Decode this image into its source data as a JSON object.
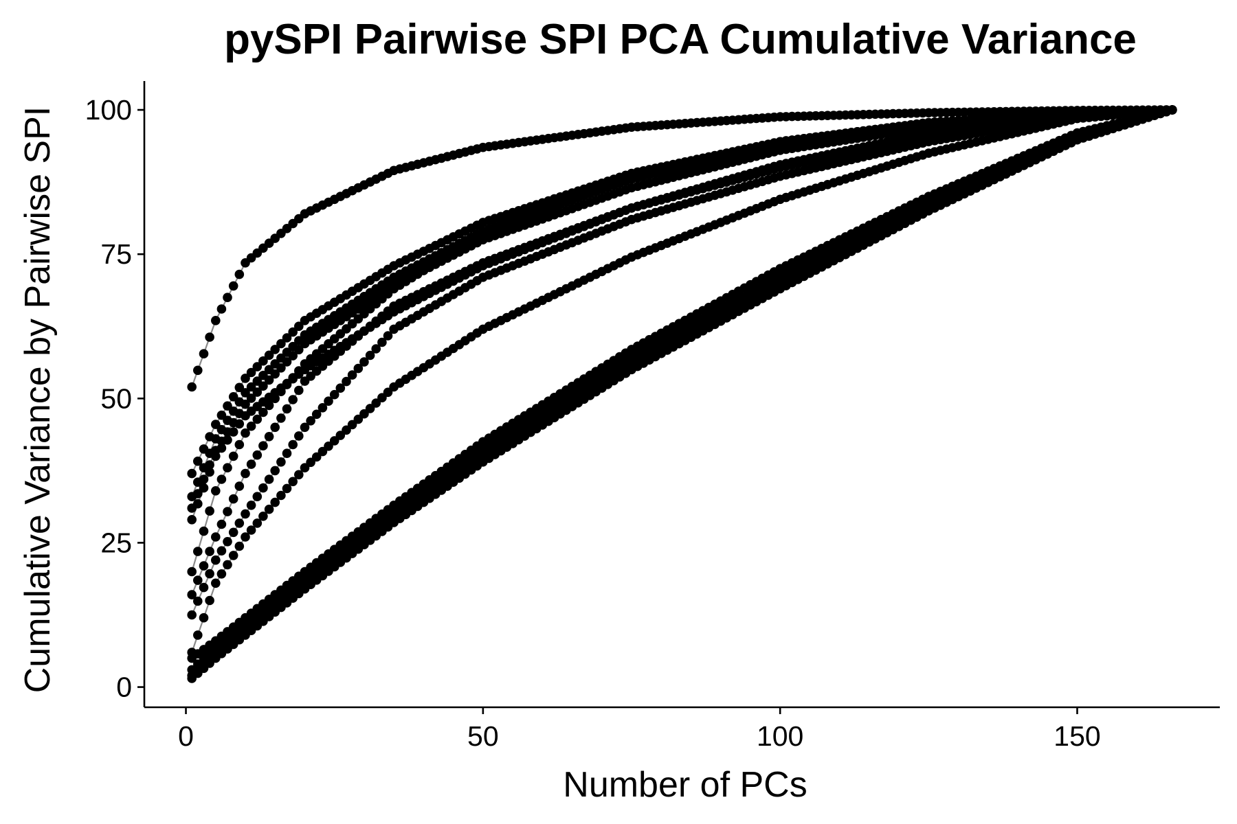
{
  "chart_data": {
    "type": "line",
    "title": "pySPI Pairwise SPI PCA Cumulative Variance",
    "xlabel": "Number of PCs",
    "ylabel": "Cumulative Variance by Pairwise SPI",
    "xlim": [
      -7,
      174
    ],
    "ylim": [
      -3.5,
      105
    ],
    "x_ticks": [
      0,
      50,
      100,
      150
    ],
    "y_ticks": [
      0,
      25,
      50,
      75,
      100
    ],
    "grid": false,
    "legend": "none",
    "colors": {
      "points": "#000000",
      "lines": "#8a8a8a"
    },
    "n_components": 166,
    "series": [
      {
        "x": [
          1,
          5,
          10,
          20,
          35,
          50,
          75,
          100,
          125,
          150,
          166
        ],
        "y": [
          52.0,
          63.5,
          73.5,
          82.0,
          89.5,
          93.5,
          97.0,
          98.8,
          99.5,
          99.9,
          100
        ]
      },
      {
        "x": [
          1,
          5,
          10,
          20,
          35,
          50,
          75,
          100,
          125,
          150,
          166
        ],
        "y": [
          37.0,
          45.5,
          53.5,
          63.5,
          73.0,
          80.5,
          89.0,
          94.5,
          97.8,
          99.6,
          100
        ]
      },
      {
        "x": [
          1,
          5,
          10,
          20,
          35,
          50,
          75,
          100,
          125,
          150,
          166
        ],
        "y": [
          33.0,
          43.0,
          51.0,
          61.0,
          71.0,
          79.0,
          88.0,
          94.0,
          97.5,
          99.5,
          100
        ]
      },
      {
        "x": [
          1,
          5,
          10,
          20,
          35,
          50,
          75,
          100,
          125,
          150,
          166
        ],
        "y": [
          31.0,
          41.0,
          49.0,
          59.5,
          69.5,
          77.5,
          86.5,
          93.0,
          97.0,
          99.4,
          100
        ]
      },
      {
        "x": [
          1,
          5,
          10,
          20,
          35,
          50,
          75,
          100,
          125,
          150,
          166
        ],
        "y": [
          29.0,
          40.0,
          47.0,
          55.0,
          65.0,
          73.0,
          83.0,
          90.5,
          96.0,
          99.3,
          100
        ]
      },
      {
        "x": [
          1,
          5,
          10,
          20,
          35,
          50,
          75,
          100,
          125,
          150,
          166
        ],
        "y": [
          20.0,
          34.0,
          44.0,
          56.0,
          69.0,
          78.5,
          88.5,
          94.5,
          97.8,
          99.6,
          100
        ]
      },
      {
        "x": [
          1,
          5,
          10,
          20,
          35,
          50,
          75,
          100,
          125,
          150,
          166
        ],
        "y": [
          16.0,
          26.0,
          37.0,
          53.0,
          66.0,
          73.5,
          83.0,
          90.0,
          95.5,
          99.2,
          100
        ]
      },
      {
        "x": [
          1,
          5,
          10,
          20,
          35,
          50,
          75,
          100,
          125,
          150,
          166
        ],
        "y": [
          12.5,
          22.0,
          30.0,
          45.0,
          62.0,
          71.0,
          81.0,
          88.5,
          94.5,
          98.9,
          100
        ]
      },
      {
        "x": [
          1,
          5,
          10,
          20,
          35,
          50,
          75,
          100,
          125,
          150,
          166
        ],
        "y": [
          6.0,
          18.0,
          26.0,
          38.0,
          52.0,
          62.0,
          74.5,
          84.5,
          92.5,
          98.5,
          100
        ]
      },
      {
        "x": [
          1,
          5,
          10,
          20,
          35,
          50,
          75,
          100,
          125,
          150,
          166
        ],
        "y": [
          5.0,
          8.0,
          12.0,
          20.0,
          31.5,
          42.5,
          58.5,
          72.5,
          85.0,
          96.0,
          100
        ]
      },
      {
        "x": [
          1,
          5,
          10,
          20,
          35,
          50,
          75,
          100,
          125,
          150,
          166
        ],
        "y": [
          3.0,
          7.0,
          11.0,
          19.0,
          30.5,
          41.0,
          57.0,
          71.0,
          84.0,
          95.5,
          100
        ]
      },
      {
        "x": [
          1,
          5,
          10,
          20,
          35,
          50,
          75,
          100,
          125,
          150,
          166
        ],
        "y": [
          2.0,
          6.0,
          10.0,
          18.0,
          29.5,
          40.0,
          56.0,
          70.0,
          83.0,
          95.0,
          100
        ]
      },
      {
        "x": [
          1,
          5,
          10,
          20,
          35,
          50,
          75,
          100,
          125,
          150,
          166
        ],
        "y": [
          1.5,
          5.0,
          9.0,
          17.0,
          28.5,
          39.0,
          55.0,
          69.0,
          82.5,
          94.8,
          100
        ]
      }
    ]
  }
}
